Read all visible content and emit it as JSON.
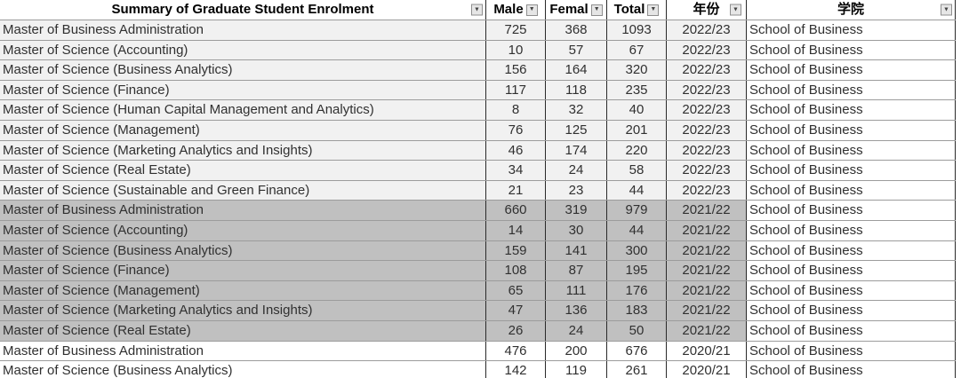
{
  "table": {
    "header": {
      "program_title": "Summary of Graduate Student Enrolment",
      "male": "Male",
      "female": "Femal",
      "total": "Total",
      "year": "年份",
      "school": "学院"
    },
    "rows": [
      {
        "program": "Master of Business Administration",
        "male": 725,
        "female": 368,
        "total": 1093,
        "year": "2022/23",
        "school": "School of Business",
        "shade": "light"
      },
      {
        "program": "Master of Science (Accounting)",
        "male": 10,
        "female": 57,
        "total": 67,
        "year": "2022/23",
        "school": "School of Business",
        "shade": "light"
      },
      {
        "program": "Master of Science (Business Analytics)",
        "male": 156,
        "female": 164,
        "total": 320,
        "year": "2022/23",
        "school": "School of Business",
        "shade": "light"
      },
      {
        "program": "Master of Science (Finance)",
        "male": 117,
        "female": 118,
        "total": 235,
        "year": "2022/23",
        "school": "School of Business",
        "shade": "light"
      },
      {
        "program": "Master of Science (Human Capital Management and Analytics)",
        "male": 8,
        "female": 32,
        "total": 40,
        "year": "2022/23",
        "school": "School of Business",
        "shade": "light"
      },
      {
        "program": "Master of Science (Management)",
        "male": 76,
        "female": 125,
        "total": 201,
        "year": "2022/23",
        "school": "School of Business",
        "shade": "light"
      },
      {
        "program": "Master of Science (Marketing Analytics and Insights)",
        "male": 46,
        "female": 174,
        "total": 220,
        "year": "2022/23",
        "school": "School of Business",
        "shade": "light"
      },
      {
        "program": "Master of Science (Real Estate)",
        "male": 34,
        "female": 24,
        "total": 58,
        "year": "2022/23",
        "school": "School of Business",
        "shade": "light"
      },
      {
        "program": "Master of Science (Sustainable and Green Finance)",
        "male": 21,
        "female": 23,
        "total": 44,
        "year": "2022/23",
        "school": "School of Business",
        "shade": "light"
      },
      {
        "program": "Master of Business Administration",
        "male": 660,
        "female": 319,
        "total": 979,
        "year": "2021/22",
        "school": "School of Business",
        "shade": "dark"
      },
      {
        "program": "Master of Science (Accounting)",
        "male": 14,
        "female": 30,
        "total": 44,
        "year": "2021/22",
        "school": "School of Business",
        "shade": "dark"
      },
      {
        "program": "Master of Science (Business Analytics)",
        "male": 159,
        "female": 141,
        "total": 300,
        "year": "2021/22",
        "school": "School of Business",
        "shade": "dark"
      },
      {
        "program": "Master of Science (Finance)",
        "male": 108,
        "female": 87,
        "total": 195,
        "year": "2021/22",
        "school": "School of Business",
        "shade": "dark"
      },
      {
        "program": "Master of Science (Management)",
        "male": 65,
        "female": 111,
        "total": 176,
        "year": "2021/22",
        "school": "School of Business",
        "shade": "dark"
      },
      {
        "program": "Master of Science (Marketing Analytics and Insights)",
        "male": 47,
        "female": 136,
        "total": 183,
        "year": "2021/22",
        "school": "School of Business",
        "shade": "dark"
      },
      {
        "program": "Master of Science (Real Estate)",
        "male": 26,
        "female": 24,
        "total": 50,
        "year": "2021/22",
        "school": "School of Business",
        "shade": "dark"
      },
      {
        "program": "Master of Business Administration",
        "male": 476,
        "female": 200,
        "total": 676,
        "year": "2020/21",
        "school": "School of Business",
        "shade": "white"
      },
      {
        "program": "Master of Science (Business Analytics)",
        "male": 142,
        "female": 119,
        "total": 261,
        "year": "2020/21",
        "school": "School of Business",
        "shade": "white"
      }
    ]
  },
  "icons": {
    "filter_glyph": "▼"
  },
  "colors": {
    "light_row": "#f1f1f1",
    "dark_row": "#c0c0c0",
    "grid_h": "#9c9c9c",
    "grid_v": "#2a2a2a",
    "header_bg": "#ffffff"
  }
}
